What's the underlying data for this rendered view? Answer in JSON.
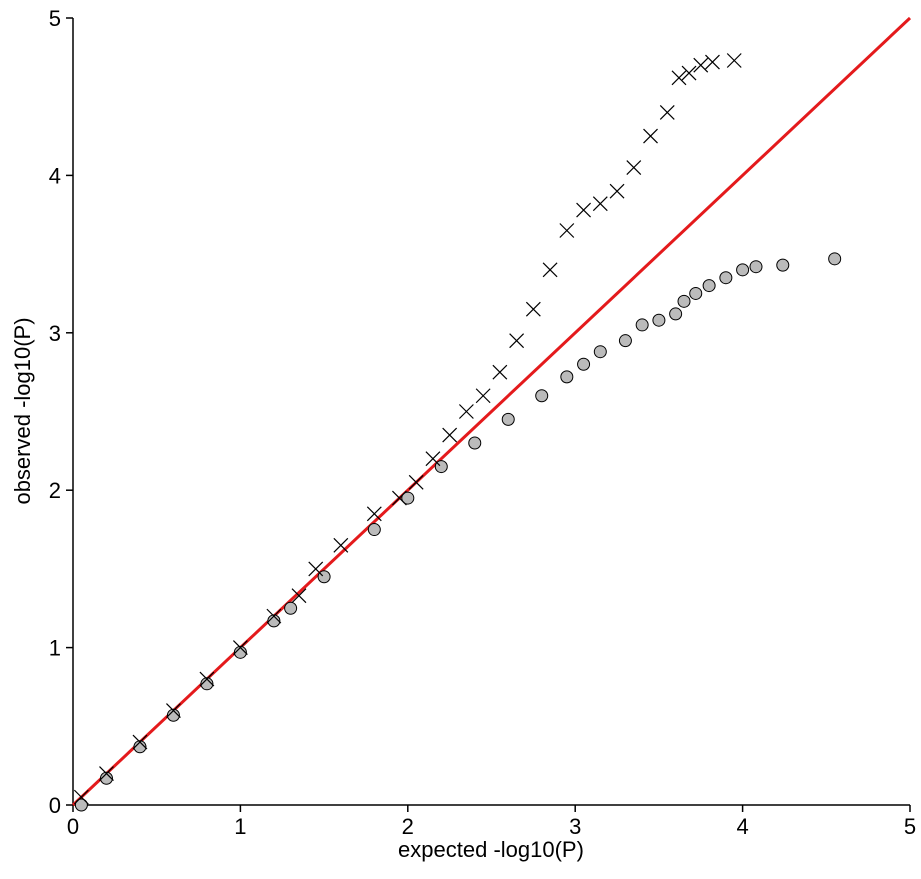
{
  "chart_data": {
    "type": "scatter",
    "x_label": "expected -log10(P)",
    "y_label": "observed -log10(P)",
    "xlim": [
      0,
      5
    ],
    "ylim": [
      0,
      5
    ],
    "xticks": [
      0,
      1,
      2,
      3,
      4,
      5
    ],
    "yticks": [
      0,
      1,
      2,
      3,
      4,
      5
    ],
    "grid": false,
    "series": [
      {
        "marker": "x",
        "color": "#000000",
        "x": [
          0.05,
          0.2,
          0.4,
          0.6,
          0.8,
          1.0,
          1.2,
          1.35,
          1.45,
          1.6,
          1.8,
          1.95,
          2.05,
          2.15,
          2.25,
          2.35,
          2.45,
          2.55,
          2.65,
          2.75,
          2.85,
          2.95,
          3.05,
          3.15,
          3.25,
          3.35,
          3.45,
          3.55,
          3.62,
          3.68,
          3.75,
          3.82,
          3.95
        ],
        "values": [
          0.05,
          0.2,
          0.4,
          0.6,
          0.8,
          1.0,
          1.2,
          1.33,
          1.5,
          1.65,
          1.85,
          1.95,
          2.05,
          2.2,
          2.35,
          2.5,
          2.6,
          2.75,
          2.95,
          3.15,
          3.4,
          3.65,
          3.78,
          3.82,
          3.9,
          4.05,
          4.25,
          4.4,
          4.62,
          4.65,
          4.7,
          4.72,
          4.73
        ]
      },
      {
        "marker": "circle",
        "color": "#bbbbbb",
        "x": [
          0.05,
          0.2,
          0.4,
          0.6,
          0.8,
          1.0,
          1.2,
          1.3,
          1.5,
          1.8,
          2.0,
          2.2,
          2.4,
          2.6,
          2.8,
          2.95,
          3.05,
          3.15,
          3.3,
          3.4,
          3.5,
          3.6,
          3.65,
          3.72,
          3.8,
          3.9,
          4.0,
          4.08,
          4.24,
          4.55
        ],
        "values": [
          0.0,
          0.17,
          0.37,
          0.57,
          0.77,
          0.97,
          1.17,
          1.25,
          1.45,
          1.75,
          1.95,
          2.15,
          2.3,
          2.45,
          2.6,
          2.72,
          2.8,
          2.88,
          2.95,
          3.05,
          3.08,
          3.12,
          3.2,
          3.25,
          3.3,
          3.35,
          3.4,
          3.42,
          3.43,
          3.47
        ]
      }
    ],
    "reference_line": {
      "color": "#e41a1c",
      "x": [
        0,
        5
      ],
      "values": [
        0,
        5
      ]
    }
  }
}
